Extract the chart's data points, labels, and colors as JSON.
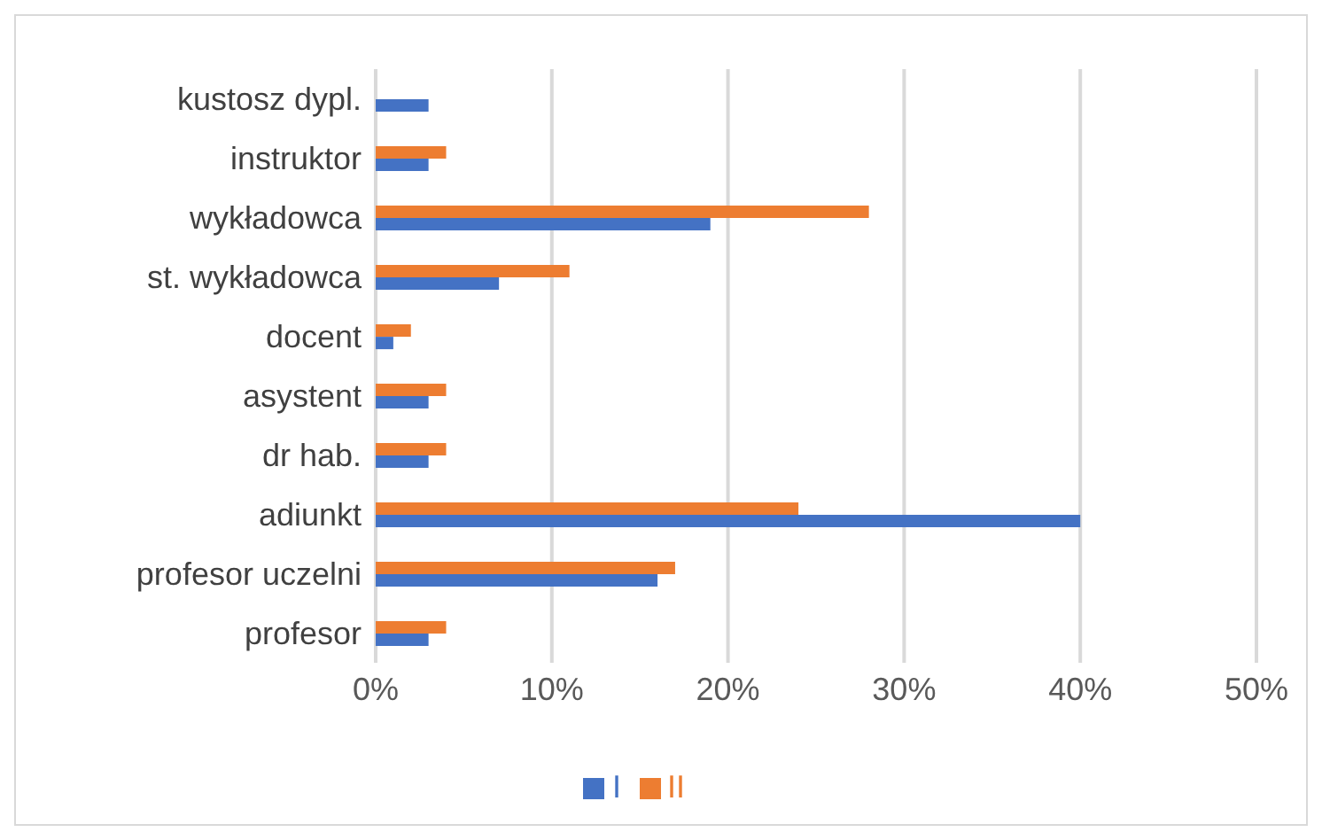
{
  "chart_data": {
    "type": "bar",
    "orientation": "horizontal",
    "categories": [
      "kustosz dypl.",
      "instruktor",
      "wykładowca",
      "st. wykładowca",
      "docent",
      "asystent",
      "dr hab.",
      "adiunkt",
      "profesor uczelni",
      "profesor"
    ],
    "series": [
      {
        "name": "II",
        "color": "#ed7d31",
        "values": [
          null,
          4,
          28,
          11,
          2,
          4,
          4,
          24,
          17,
          4
        ]
      },
      {
        "name": "I",
        "color": "#4472c4",
        "values": [
          3,
          3,
          19,
          7,
          1,
          3,
          3,
          40,
          16,
          3
        ]
      }
    ],
    "xlim": [
      0,
      50
    ],
    "xticks": [
      {
        "value": 0,
        "label": "0%"
      },
      {
        "value": 10,
        "label": "10%"
      },
      {
        "value": 20,
        "label": "20%"
      },
      {
        "value": 30,
        "label": "30%"
      },
      {
        "value": 40,
        "label": "40%"
      },
      {
        "value": 50,
        "label": "50%"
      }
    ],
    "grid": "x",
    "legend": "bottom"
  }
}
